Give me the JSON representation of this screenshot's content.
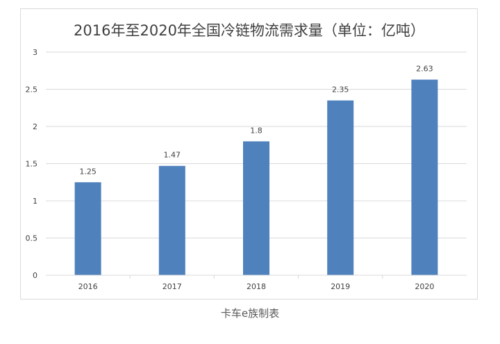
{
  "caption": "卡车e族制表",
  "chart_data": {
    "type": "bar",
    "title": "2016年至2020年全国冷链物流需求量（单位：亿吨）",
    "xlabel": "",
    "ylabel": "",
    "categories": [
      "2016",
      "2017",
      "2018",
      "2019",
      "2020"
    ],
    "values": [
      1.25,
      1.47,
      1.8,
      2.35,
      2.63
    ],
    "data_labels": [
      "1.25",
      "1.47",
      "1.8",
      "2.35",
      "2.63"
    ],
    "ylim": [
      0,
      3
    ],
    "yticks": [
      0,
      0.5,
      1,
      1.5,
      2,
      2.5,
      3
    ],
    "ytick_labels": [
      "0",
      "0.5",
      "1",
      "1.5",
      "2",
      "2.5",
      "3"
    ],
    "grid": true,
    "legend": "none",
    "bar_color": "#4f81bd",
    "grid_color": "#d9d9d9"
  }
}
